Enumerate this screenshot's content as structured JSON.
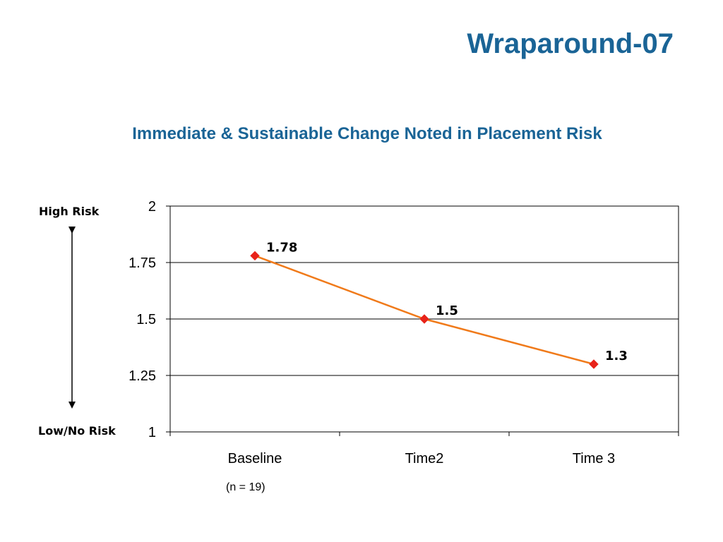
{
  "slide": {
    "title": "Wraparound-07",
    "subtitle": "Immediate & Sustainable Change Noted in Placement Risk",
    "high_risk_label": "High Risk",
    "low_risk_label": "Low/No Risk",
    "note": "(n = 19)"
  },
  "colors": {
    "title": "#1a6496",
    "line": "#f07a1a",
    "marker": "#e8231a"
  },
  "chart_data": {
    "type": "line",
    "title": "",
    "xlabel": "",
    "ylabel": "",
    "categories": [
      "Baseline",
      "Time2",
      "Time 3"
    ],
    "series": [
      {
        "values": [
          1.78,
          1.5,
          1.3
        ]
      }
    ],
    "data_labels": [
      "1.78",
      "1.5",
      "1.3"
    ],
    "ylim": [
      1,
      2
    ],
    "yticks": [
      1,
      1.25,
      1.5,
      1.75,
      2
    ],
    "ytick_labels": [
      "1",
      "1.25",
      "1.5",
      "1.75",
      "2"
    ],
    "grid": true,
    "legend": "none"
  }
}
